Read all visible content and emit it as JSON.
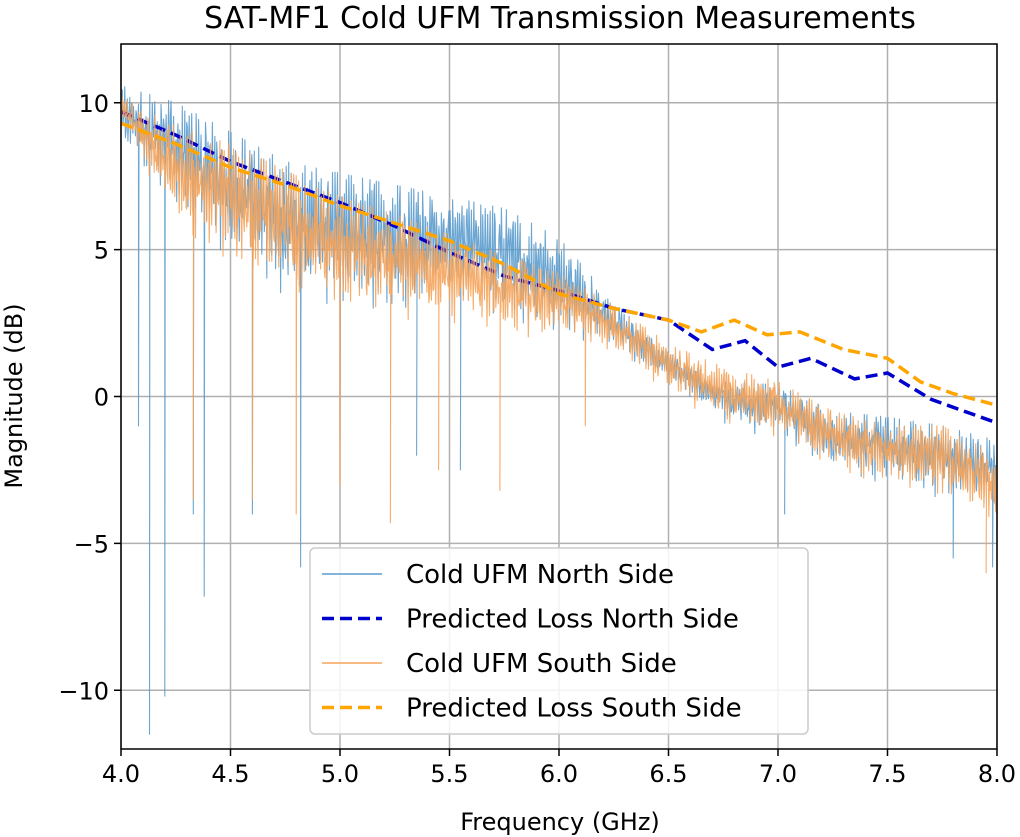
{
  "chart_data": {
    "type": "line",
    "title": "SAT-MF1 Cold UFM Transmission Measurements",
    "xlabel": "Frequency (GHz)",
    "ylabel": "Magnitude (dB)",
    "xlim": [
      4.0,
      8.0
    ],
    "ylim": [
      -12.0,
      12.0
    ],
    "grid": true,
    "legend_position": "lower-center",
    "x_ticks": [
      4.0,
      4.5,
      5.0,
      5.5,
      6.0,
      6.5,
      7.0,
      7.5,
      8.0
    ],
    "x_tick_labels": [
      "4.0",
      "4.5",
      "5.0",
      "5.5",
      "6.0",
      "6.5",
      "7.0",
      "7.5",
      "8.0"
    ],
    "y_ticks": [
      10,
      5,
      0,
      -5,
      -10
    ],
    "y_tick_labels": [
      "10",
      "5",
      "0",
      "−5",
      "−10"
    ],
    "series": [
      {
        "name": "Cold UFM North Side",
        "style": "solid",
        "color": "#5b9bcc",
        "envelope_upper": [
          [
            4.0,
            10.6
          ],
          [
            4.25,
            10.0
          ],
          [
            4.5,
            9.0
          ],
          [
            4.75,
            8.0
          ],
          [
            5.0,
            7.6
          ],
          [
            5.25,
            7.2
          ],
          [
            5.5,
            6.8
          ],
          [
            5.75,
            6.4
          ],
          [
            6.0,
            5.4
          ],
          [
            6.25,
            3.2
          ],
          [
            6.5,
            1.5
          ],
          [
            6.75,
            0.5
          ],
          [
            7.0,
            0.4
          ],
          [
            7.25,
            -0.5
          ],
          [
            7.5,
            -0.7
          ],
          [
            7.75,
            -1.0
          ],
          [
            8.0,
            -1.5
          ]
        ],
        "envelope_lower": [
          [
            4.0,
            8.5
          ],
          [
            4.25,
            6.5
          ],
          [
            4.5,
            4.5
          ],
          [
            4.75,
            3.0
          ],
          [
            5.0,
            3.0
          ],
          [
            5.25,
            2.5
          ],
          [
            5.5,
            3.5
          ],
          [
            5.75,
            2.5
          ],
          [
            6.0,
            2.0
          ],
          [
            6.25,
            1.5
          ],
          [
            6.5,
            0.5
          ],
          [
            6.75,
            -1.0
          ],
          [
            7.0,
            -1.5
          ],
          [
            7.25,
            -2.5
          ],
          [
            7.5,
            -3.0
          ],
          [
            7.75,
            -3.5
          ],
          [
            8.0,
            -4.0
          ]
        ],
        "dips": [
          [
            4.08,
            -1.0
          ],
          [
            4.13,
            -11.5
          ],
          [
            4.2,
            -10.2
          ],
          [
            4.33,
            -4.0
          ],
          [
            4.38,
            -6.8
          ],
          [
            4.6,
            -4.0
          ],
          [
            4.82,
            -5.8
          ],
          [
            5.0,
            -1.5
          ],
          [
            5.35,
            -2.0
          ],
          [
            5.55,
            -2.5
          ],
          [
            6.55,
            1.0
          ],
          [
            7.03,
            -4.0
          ],
          [
            7.25,
            -2.0
          ],
          [
            7.8,
            -5.5
          ],
          [
            7.98,
            -5.8
          ]
        ]
      },
      {
        "name": "Predicted Loss North Side",
        "style": "dashed",
        "color": "#0000cc",
        "points": [
          [
            4.0,
            9.7
          ],
          [
            4.25,
            8.9
          ],
          [
            4.5,
            8.0
          ],
          [
            4.75,
            7.3
          ],
          [
            5.0,
            6.6
          ],
          [
            5.25,
            5.8
          ],
          [
            5.5,
            4.9
          ],
          [
            5.75,
            4.1
          ],
          [
            6.0,
            3.6
          ],
          [
            6.25,
            3.0
          ],
          [
            6.5,
            2.6
          ],
          [
            6.7,
            1.6
          ],
          [
            6.85,
            1.9
          ],
          [
            7.0,
            1.0
          ],
          [
            7.15,
            1.3
          ],
          [
            7.35,
            0.6
          ],
          [
            7.5,
            0.8
          ],
          [
            7.7,
            -0.1
          ],
          [
            7.85,
            -0.5
          ],
          [
            8.0,
            -0.9
          ]
        ]
      },
      {
        "name": "Cold UFM South Side",
        "style": "solid",
        "color": "#f5a35a",
        "envelope_upper": [
          [
            4.0,
            10.2
          ],
          [
            4.25,
            9.2
          ],
          [
            4.5,
            8.6
          ],
          [
            4.75,
            7.7
          ],
          [
            5.0,
            6.8
          ],
          [
            5.25,
            6.2
          ],
          [
            5.5,
            5.5
          ],
          [
            5.75,
            4.8
          ],
          [
            6.0,
            4.2
          ],
          [
            6.25,
            3.1
          ],
          [
            6.5,
            1.8
          ],
          [
            6.75,
            1.0
          ],
          [
            7.0,
            0.5
          ],
          [
            7.25,
            -0.5
          ],
          [
            7.5,
            -1.0
          ],
          [
            7.75,
            -1.0
          ],
          [
            8.0,
            -2.0
          ]
        ],
        "envelope_lower": [
          [
            4.0,
            9.5
          ],
          [
            4.25,
            5.5
          ],
          [
            4.5,
            4.5
          ],
          [
            4.75,
            3.5
          ],
          [
            5.0,
            3.0
          ],
          [
            5.25,
            2.5
          ],
          [
            5.5,
            2.5
          ],
          [
            5.75,
            2.0
          ],
          [
            6.0,
            2.0
          ],
          [
            6.25,
            1.5
          ],
          [
            6.5,
            0.0
          ],
          [
            6.75,
            -1.0
          ],
          [
            7.0,
            -1.5
          ],
          [
            7.25,
            -2.5
          ],
          [
            7.5,
            -3.0
          ],
          [
            7.75,
            -3.5
          ],
          [
            8.0,
            -4.5
          ]
        ],
        "dips": [
          [
            4.33,
            -3.5
          ],
          [
            4.6,
            -3.5
          ],
          [
            4.8,
            -4.0
          ],
          [
            5.0,
            -3.0
          ],
          [
            5.23,
            -4.3
          ],
          [
            5.45,
            -2.5
          ],
          [
            5.73,
            -3.2
          ],
          [
            6.12,
            -1.0
          ],
          [
            7.95,
            -6.0
          ]
        ]
      },
      {
        "name": "Predicted Loss South Side",
        "style": "dashed",
        "color": "#ffa500",
        "points": [
          [
            4.0,
            9.3
          ],
          [
            4.25,
            8.6
          ],
          [
            4.5,
            7.8
          ],
          [
            4.75,
            7.2
          ],
          [
            5.0,
            6.5
          ],
          [
            5.25,
            5.9
          ],
          [
            5.5,
            5.3
          ],
          [
            5.75,
            4.5
          ],
          [
            6.0,
            3.5
          ],
          [
            6.25,
            3.0
          ],
          [
            6.5,
            2.6
          ],
          [
            6.65,
            2.2
          ],
          [
            6.8,
            2.6
          ],
          [
            6.95,
            2.1
          ],
          [
            7.1,
            2.2
          ],
          [
            7.3,
            1.6
          ],
          [
            7.5,
            1.3
          ],
          [
            7.65,
            0.5
          ],
          [
            7.8,
            0.1
          ],
          [
            8.0,
            -0.3
          ]
        ]
      }
    ]
  }
}
